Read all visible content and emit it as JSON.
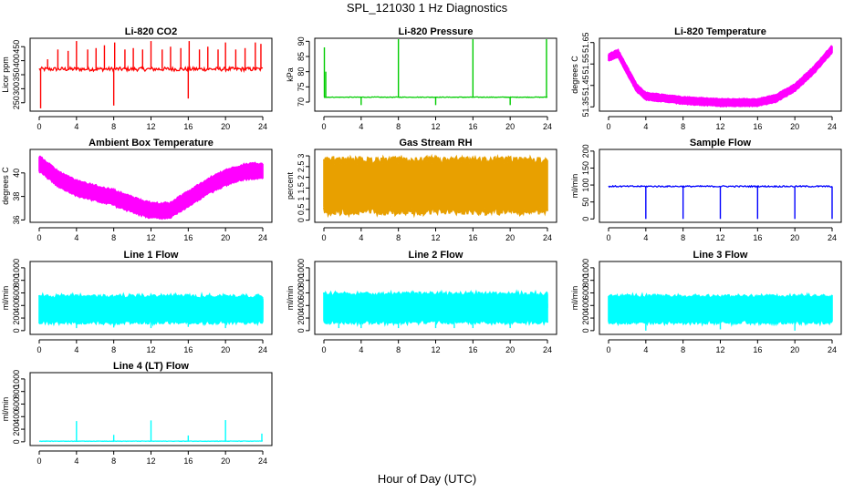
{
  "title": "SPL_121030  1 Hz Diagnostics",
  "xcaption": "Hour of Day (UTC)",
  "chart_data": [
    {
      "type": "line",
      "title": "Li-820 CO2",
      "ylabel": "Licor ppm",
      "color": "#ff0000",
      "x_ticks": [
        0,
        4,
        8,
        12,
        16,
        20,
        24
      ],
      "xlim": [
        0,
        24
      ],
      "ylim": [
        220,
        480
      ],
      "y_ticks": [
        250,
        300,
        350,
        400,
        450
      ],
      "baseline": 370,
      "noise": 7,
      "band": 0,
      "spikes": [
        [
          0.9,
          405
        ],
        [
          2.0,
          440
        ],
        [
          3.1,
          435
        ],
        [
          4.0,
          470
        ],
        [
          5.2,
          440
        ],
        [
          6.1,
          445
        ],
        [
          7.0,
          455
        ],
        [
          8.0,
          240
        ],
        [
          8.1,
          465
        ],
        [
          9.2,
          440
        ],
        [
          10.1,
          445
        ],
        [
          11.1,
          440
        ],
        [
          12.0,
          470
        ],
        [
          13.2,
          440
        ],
        [
          14.1,
          450
        ],
        [
          15.2,
          445
        ],
        [
          16.0,
          265
        ],
        [
          16.1,
          470
        ],
        [
          17.2,
          440
        ],
        [
          18.1,
          450
        ],
        [
          19.2,
          440
        ],
        [
          20.0,
          465
        ],
        [
          21.1,
          440
        ],
        [
          22.1,
          445
        ],
        [
          23.2,
          465
        ],
        [
          23.8,
          460
        ],
        [
          0.15,
          230
        ]
      ]
    },
    {
      "type": "line",
      "title": "Li-820 Pressure",
      "ylabel": "kPa",
      "color": "#00cc00",
      "x_ticks": [
        0,
        4,
        8,
        12,
        16,
        20,
        24
      ],
      "xlim": [
        0,
        24
      ],
      "ylim": [
        67,
        91
      ],
      "y_ticks": [
        70,
        75,
        80,
        85,
        90
      ],
      "baseline": 71.6,
      "noise": 0.1,
      "band": 0,
      "spikes": [
        [
          0.05,
          88
        ],
        [
          0.2,
          80
        ],
        [
          4.0,
          69
        ],
        [
          8.0,
          91
        ],
        [
          12.0,
          69
        ],
        [
          16.0,
          91
        ],
        [
          20.0,
          69
        ],
        [
          23.9,
          91
        ]
      ]
    },
    {
      "type": "line",
      "title": "Li-820 Temperature",
      "ylabel": "degrees C",
      "color": "#ff00ff",
      "x_ticks": [
        0,
        4,
        8,
        12,
        16,
        20,
        24
      ],
      "xlim": [
        0,
        24
      ],
      "ylim": [
        51.33,
        51.67
      ],
      "y_ticks": [
        51.35,
        51.45,
        51.55,
        51.65
      ],
      "profile": [
        [
          0,
          51.58
        ],
        [
          1,
          51.6
        ],
        [
          2,
          51.52
        ],
        [
          3,
          51.44
        ],
        [
          4,
          51.4
        ],
        [
          8,
          51.38
        ],
        [
          12,
          51.37
        ],
        [
          16,
          51.37
        ],
        [
          18,
          51.39
        ],
        [
          20,
          51.44
        ],
        [
          22,
          51.52
        ],
        [
          24,
          51.62
        ]
      ],
      "noise": 0.012,
      "band": 0.018
    },
    {
      "type": "line",
      "title": "Ambient Box Temperature",
      "ylabel": "degrees C",
      "color": "#ff00ff",
      "x_ticks": [
        0,
        4,
        8,
        12,
        16,
        20,
        24
      ],
      "xlim": [
        0,
        24
      ],
      "ylim": [
        35.8,
        42
      ],
      "y_ticks": [
        36,
        38,
        40
      ],
      "profile": [
        [
          0,
          40.8
        ],
        [
          2,
          39.5
        ],
        [
          4,
          38.7
        ],
        [
          6,
          38.3
        ],
        [
          8,
          37.9
        ],
        [
          10,
          37.3
        ],
        [
          12,
          36.8
        ],
        [
          14,
          36.8
        ],
        [
          16,
          37.8
        ],
        [
          18,
          38.8
        ],
        [
          20,
          39.6
        ],
        [
          22,
          40.1
        ],
        [
          24,
          40.2
        ]
      ],
      "noise": 0.25,
      "band": 0.7
    },
    {
      "type": "line",
      "title": "Gas Stream RH",
      "ylabel": "percent",
      "color": "#e8a000",
      "x_ticks": [
        0,
        4,
        8,
        12,
        16,
        20,
        24
      ],
      "xlim": [
        0,
        24
      ],
      "ylim": [
        -0.1,
        3.3
      ],
      "y_ticks": [
        0.0,
        0.5,
        1.0,
        1.5,
        2.0,
        2.5,
        3.0
      ],
      "baseline": 1.6,
      "noise": 0.15,
      "band": 1.35,
      "spikes": []
    },
    {
      "type": "line",
      "title": "Sample Flow",
      "ylabel": "ml/min",
      "color": "#0000ff",
      "x_ticks": [
        0,
        4,
        8,
        12,
        16,
        20,
        24
      ],
      "xlim": [
        0,
        24
      ],
      "ylim": [
        -10,
        205
      ],
      "y_ticks": [
        0,
        50,
        100,
        150,
        200
      ],
      "baseline": 96,
      "noise": 2,
      "band": 0,
      "spikes": [
        [
          4.0,
          0
        ],
        [
          8.0,
          0
        ],
        [
          12.0,
          0
        ],
        [
          16.0,
          0
        ],
        [
          20.0,
          0
        ],
        [
          24.0,
          0
        ]
      ]
    },
    {
      "type": "line",
      "title": "Line 1 Flow",
      "ylabel": "ml/min",
      "color": "#00ffff",
      "x_ticks": [
        0,
        4,
        8,
        12,
        16,
        20,
        24
      ],
      "xlim": [
        0,
        24
      ],
      "ylim": [
        -60,
        1100
      ],
      "y_ticks": [
        0,
        200,
        400,
        600,
        800,
        1000
      ],
      "baseline": 340,
      "noise": 10,
      "band": 230,
      "spikes": [
        [
          4.0,
          40
        ],
        [
          8.0,
          50
        ],
        [
          12.0,
          40
        ],
        [
          16.0,
          60
        ],
        [
          20.0,
          40
        ],
        [
          24.0,
          480
        ]
      ]
    },
    {
      "type": "line",
      "title": "Line 2 Flow",
      "ylabel": "ml/min",
      "color": "#00ffff",
      "x_ticks": [
        0,
        4,
        8,
        12,
        16,
        20,
        24
      ],
      "xlim": [
        0,
        24
      ],
      "ylim": [
        -60,
        1100
      ],
      "y_ticks": [
        0,
        200,
        400,
        600,
        800,
        1000
      ],
      "baseline": 360,
      "noise": 10,
      "band": 250,
      "spikes": [
        [
          1.6,
          40
        ],
        [
          4.0,
          40
        ],
        [
          8.0,
          40
        ],
        [
          12.0,
          40
        ],
        [
          14.0,
          40
        ],
        [
          16.0,
          40
        ],
        [
          20.0,
          40
        ],
        [
          24.0,
          430
        ]
      ]
    },
    {
      "type": "line",
      "title": "Line 3 Flow",
      "ylabel": "ml/min",
      "color": "#00ffff",
      "x_ticks": [
        0,
        4,
        8,
        12,
        16,
        20,
        24
      ],
      "xlim": [
        0,
        24
      ],
      "ylim": [
        -60,
        1100
      ],
      "y_ticks": [
        0,
        200,
        400,
        600,
        800,
        1000
      ],
      "baseline": 340,
      "noise": 10,
      "band": 230,
      "spikes": [
        [
          4.0,
          0
        ],
        [
          12.0,
          20
        ],
        [
          20.0,
          0
        ],
        [
          23.9,
          430
        ]
      ]
    },
    {
      "type": "line",
      "title": "Line 4 (LT) Flow",
      "ylabel": "ml/min",
      "color": "#00ffff",
      "x_ticks": [
        0,
        4,
        8,
        12,
        16,
        20,
        24
      ],
      "xlim": [
        0,
        24
      ],
      "ylim": [
        -60,
        1100
      ],
      "y_ticks": [
        0,
        200,
        400,
        600,
        800,
        1000
      ],
      "baseline": 10,
      "noise": 3,
      "band": 0,
      "spikes": [
        [
          4.0,
          330
        ],
        [
          8.0,
          110
        ],
        [
          12.0,
          340
        ],
        [
          16.0,
          100
        ],
        [
          20.0,
          345
        ],
        [
          23.9,
          130
        ]
      ]
    }
  ]
}
